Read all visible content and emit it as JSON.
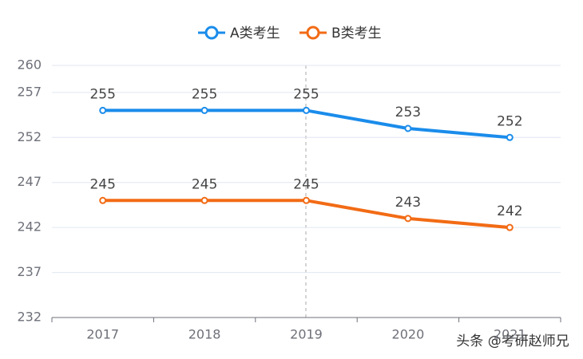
{
  "chart_data": {
    "type": "line",
    "categories": [
      "2017",
      "2018",
      "2019",
      "2020",
      "2021"
    ],
    "series": [
      {
        "name": "A类考生",
        "color": "#1a8ceb",
        "values": [
          255,
          255,
          255,
          253,
          252
        ]
      },
      {
        "name": "B类考生",
        "color": "#f26b15",
        "values": [
          245,
          245,
          245,
          243,
          242
        ]
      }
    ],
    "ylim": [
      232,
      260
    ],
    "yticks": [
      232,
      237,
      242,
      247,
      252,
      257,
      260
    ],
    "grid": true,
    "legend": "top"
  },
  "watermark": "头条 @考研赵师兄"
}
